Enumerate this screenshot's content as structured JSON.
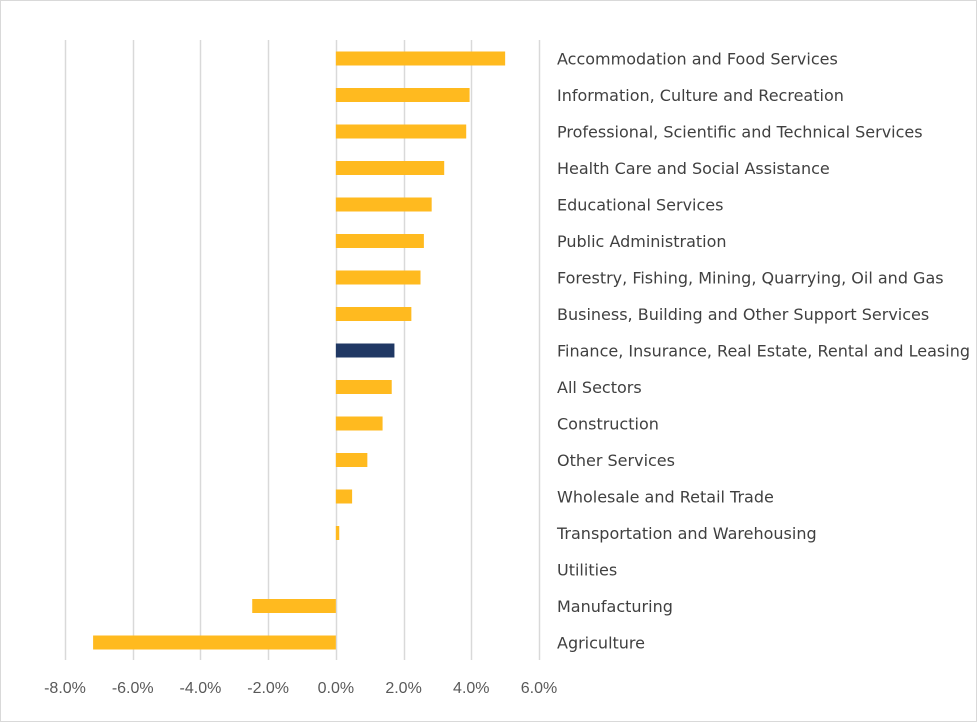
{
  "chart_data": {
    "type": "bar",
    "orientation": "horizontal",
    "title": "",
    "xlabel": "",
    "ylabel": "",
    "xlim": [
      -0.08,
      0.06
    ],
    "x_ticks": [
      -0.08,
      -0.06,
      -0.04,
      -0.02,
      0.0,
      0.02,
      0.04,
      0.06
    ],
    "x_tick_labels": [
      "-8.0%",
      "-6.0%",
      "-4.0%",
      "-2.0%",
      "0.0%",
      "2.0%",
      "4.0%",
      "6.0%"
    ],
    "grid": true,
    "legend": "none",
    "categories": [
      "Accommodation and Food Services",
      "Information, Culture and Recreation",
      "Professional, Scientific and Technical Services",
      "Health Care and Social Assistance",
      "Educational Services",
      "Public Administration",
      "Forestry, Fishing, Mining, Quarrying, Oil and Gas",
      "Business, Building and Other Support Services",
      "Finance, Insurance, Real Estate, Rental and Leasing",
      "All Sectors",
      "Construction",
      "Other Services",
      "Wholesale and Retail Trade",
      "Transportation and Warehousing",
      "Utilities",
      "Manufacturing",
      "Agriculture"
    ],
    "values": [
      0.05,
      0.0395,
      0.0385,
      0.032,
      0.0283,
      0.026,
      0.025,
      0.0223,
      0.0173,
      0.0165,
      0.0138,
      0.0093,
      0.0048,
      0.001,
      0.0,
      -0.0247,
      -0.0717
    ],
    "highlight_category": "Finance, Insurance, Real Estate, Rental and Leasing",
    "colors": {
      "bar": "#FFBA1F",
      "highlight": "#203864",
      "grid": "#d9d9d9"
    }
  }
}
